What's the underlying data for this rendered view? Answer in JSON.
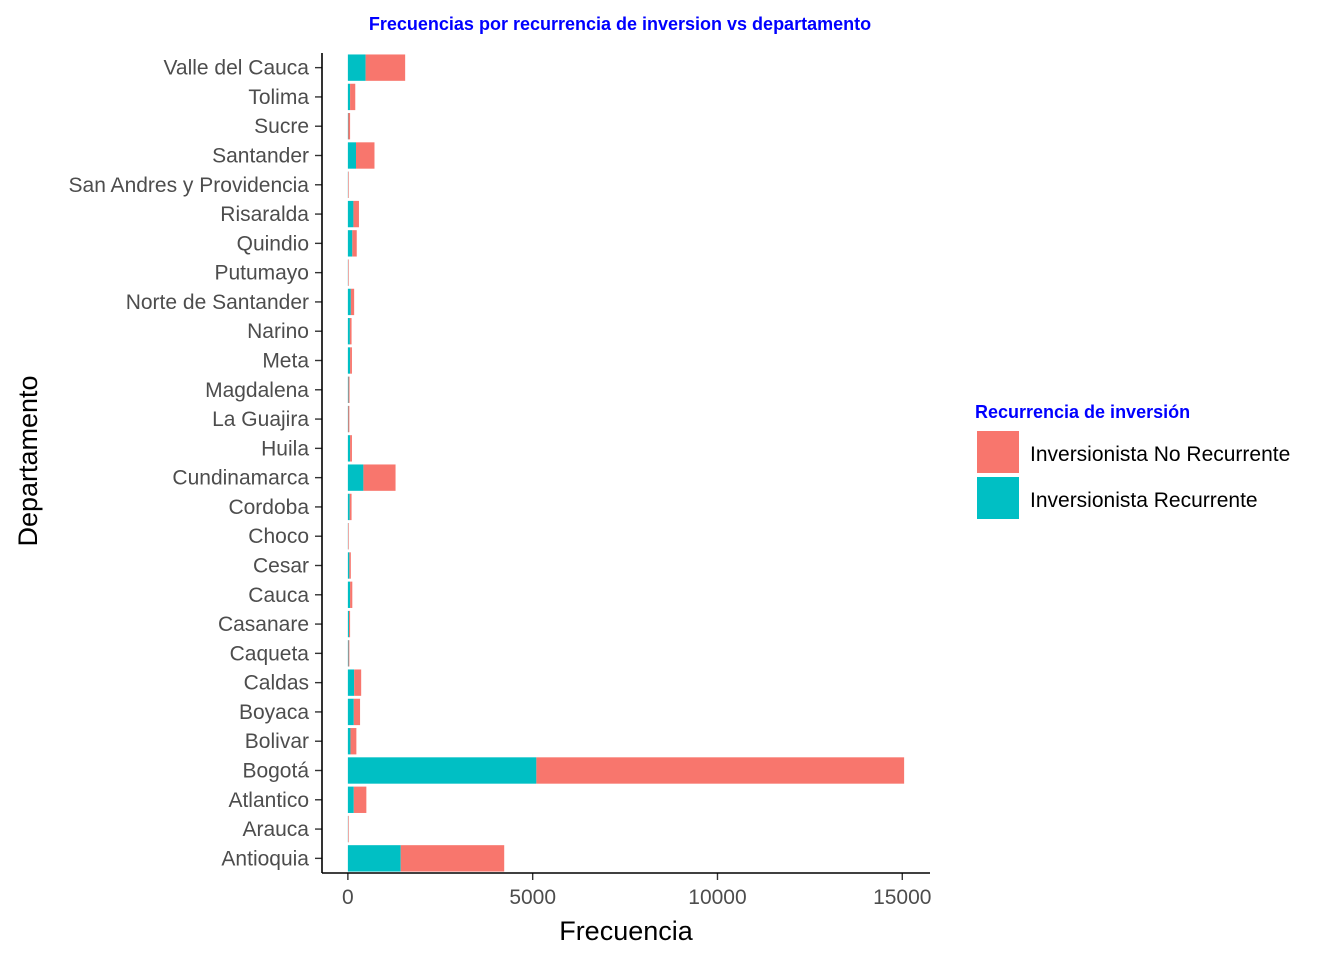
{
  "colors": {
    "title": "#0000ff",
    "no_recurrente": "#f8766d",
    "recurrente": "#00bfc4",
    "axis": "#000000"
  },
  "chart_data": {
    "type": "bar",
    "orientation": "horizontal",
    "stacked": true,
    "title": "Frecuencias por recurrencia de inversion vs departamento",
    "xlabel": "Frecuencia",
    "ylabel": "Departamento",
    "xlim": [
      -700,
      15750
    ],
    "xticks": [
      0,
      5000,
      10000,
      15000
    ],
    "xtick_labels": [
      "0",
      "5000",
      "10000",
      "15000"
    ],
    "grid": false,
    "legend": {
      "title": "Recurrencia de inversión",
      "position": "right"
    },
    "categories": [
      "Antioquia",
      "Arauca",
      "Atlantico",
      "Bogotá",
      "Bolivar",
      "Boyaca",
      "Caldas",
      "Caqueta",
      "Casanare",
      "Cauca",
      "Cesar",
      "Choco",
      "Cordoba",
      "Cundinamarca",
      "Huila",
      "La Guajira",
      "Magdalena",
      "Meta",
      "Narino",
      "Norte de Santander",
      "Putumayo",
      "Quindio",
      "Risaralda",
      "San Andres y Providencia",
      "Santander",
      "Sucre",
      "Tolima",
      "Valle del Cauca"
    ],
    "series": [
      {
        "name": "Inversionista Recurrente",
        "color": "#00bfc4",
        "values": [
          1430,
          5,
          160,
          5100,
          70,
          160,
          170,
          15,
          30,
          60,
          40,
          5,
          50,
          420,
          60,
          10,
          15,
          60,
          55,
          80,
          5,
          120,
          150,
          5,
          220,
          10,
          60,
          480
        ]
      },
      {
        "name": "Inversionista No Recurrente",
        "color": "#f8766d",
        "values": [
          2800,
          10,
          340,
          9950,
          160,
          170,
          190,
          25,
          30,
          60,
          40,
          10,
          50,
          870,
          50,
          30,
          30,
          50,
          45,
          90,
          15,
          120,
          150,
          5,
          500,
          50,
          140,
          1070
        ]
      }
    ]
  }
}
